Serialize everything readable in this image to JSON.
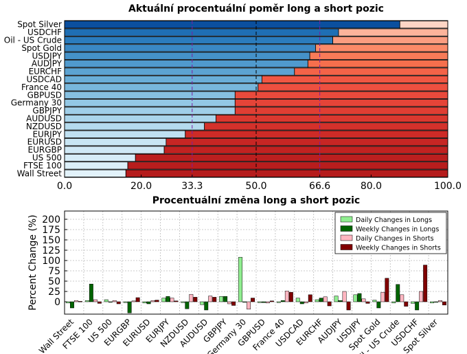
{
  "chart_data": [
    {
      "type": "bar",
      "orientation": "horizontal",
      "stacked": true,
      "title": "Aktuální procentuální poměr long a short pozic",
      "categories": [
        "Spot Silver",
        "USDCHF",
        "Oil - US Crude",
        "Spot Gold",
        "USDJPY",
        "AUDJPY",
        "EURCHF",
        "USDCAD",
        "France 40",
        "GBPUSD",
        "Germany 30",
        "GBPJPY",
        "AUDUSD",
        "NZDUSD",
        "EURJPY",
        "EURUSD",
        "EURGBP",
        "US 500",
        "FTSE 100",
        "Wall Street"
      ],
      "series": [
        {
          "values": [
            87.5,
            71.5,
            70.0,
            65.5,
            64.0,
            63.5,
            60.0,
            51.5,
            50.5,
            44.5,
            44.5,
            44.5,
            39.5,
            36.5,
            31.5,
            26.5,
            26.0,
            18.5,
            16.5,
            16.0
          ]
        },
        {
          "values": [
            12.5,
            28.5,
            30.0,
            34.5,
            36.0,
            36.5,
            40.0,
            48.5,
            49.5,
            55.5,
            55.5,
            55.5,
            60.5,
            63.5,
            68.5,
            73.5,
            74.0,
            81.5,
            83.5,
            84.0
          ]
        }
      ],
      "xlim": [
        0,
        100
      ],
      "xticks": [
        "0.0",
        "20.0",
        "33.3",
        "50.0",
        "66.6",
        "80.0",
        "100.0"
      ],
      "reference_lines": [
        33.3,
        50.0,
        66.6
      ],
      "reference_colors": {
        "33.3": "#7b1fa2",
        "50.0": "#000000",
        "66.6": "#7b1fa2"
      }
    },
    {
      "type": "bar",
      "title": "Procentuální změna long a short pozic",
      "ylabel": "Percent Change (%)",
      "ylim": [
        -30,
        220
      ],
      "yticks": [
        "0",
        "25",
        "50",
        "75",
        "100",
        "125",
        "150",
        "175",
        "200"
      ],
      "categories": [
        "Wall Street",
        "FTSE 100",
        "US 500",
        "EURGBP",
        "EURUSD",
        "EURJPY",
        "NZDUSD",
        "AUDUSD",
        "GBPJPY",
        "Germany 30",
        "GBPUSD",
        "France 40",
        "USDCAD",
        "EURCHF",
        "AUDJPY",
        "USDJPY",
        "Spot Gold",
        "Oil - US Crude",
        "USDCHF",
        "Spot Silver"
      ],
      "legend_position": "top-right",
      "series": [
        {
          "name": "Daily Changes in Longs",
          "color": "#90ee90",
          "values": [
            -3,
            3,
            5,
            -2,
            -3,
            9,
            -2,
            -7,
            13,
            108,
            -2,
            -2,
            9,
            5,
            14,
            17,
            4,
            -3,
            -4,
            -3
          ]
        },
        {
          "name": "Weekly Changes in Longs",
          "color": "#006400",
          "values": [
            -15,
            43,
            0,
            -27,
            -5,
            13,
            -17,
            -20,
            13,
            0,
            -2,
            3,
            -5,
            9,
            3,
            20,
            -15,
            42,
            -20,
            0
          ]
        },
        {
          "name": "Daily Changes in Shorts",
          "color": "#ffb6c1",
          "values": [
            3,
            5,
            3,
            2,
            3,
            9,
            18,
            14,
            -5,
            -18,
            -3,
            26,
            -3,
            12,
            25,
            7,
            23,
            17,
            25,
            3
          ]
        },
        {
          "name": "Weekly Changes in Shorts",
          "color": "#800000",
          "values": [
            1,
            -4,
            -5,
            10,
            4,
            2,
            11,
            11,
            -9,
            9,
            2,
            23,
            17,
            -10,
            -20,
            -4,
            57,
            -11,
            89,
            -8
          ]
        }
      ]
    }
  ]
}
